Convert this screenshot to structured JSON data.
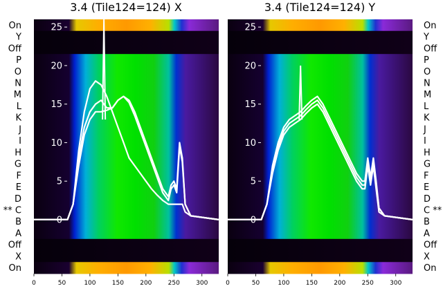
{
  "chart_data": [
    {
      "type": "heatmap",
      "title": "3.4 (Tile124=124) X",
      "row_labels_left": [
        "On",
        "Y",
        "Off",
        "P",
        "O",
        "N",
        "M",
        "L",
        "K",
        "J",
        "I",
        "H",
        "G",
        "F",
        "E",
        "D",
        "** C",
        "B",
        "A",
        "Off",
        "X",
        "On"
      ],
      "xlim": [
        0,
        330
      ],
      "ylim": [
        -7,
        26
      ],
      "x_ticks": [
        0,
        50,
        100,
        150,
        200,
        250,
        300
      ],
      "y_ticks": [
        0,
        5,
        10,
        15,
        20,
        25
      ],
      "overlay": {
        "type": "line",
        "color": "#ffffff",
        "x": [
          0,
          60,
          70,
          80,
          90,
          100,
          110,
          120,
          130,
          140,
          150,
          160,
          170,
          180,
          190,
          200,
          210,
          220,
          230,
          240,
          245,
          250,
          255,
          260,
          265,
          270,
          280,
          330
        ],
        "series": [
          {
            "values": [
              0,
              0,
              2,
              8,
              12,
              14,
              15,
              15.5,
              14.5,
              14.5,
              15.5,
              16,
              15.5,
              14,
              12,
              10,
              8,
              6,
              4,
              3,
              4.5,
              5,
              4,
              10,
              8,
              2,
              0.5,
              0
            ]
          },
          {
            "values": [
              0,
              0,
              2,
              7,
              11,
              13,
              14,
              14,
              14.2,
              14.5,
              15.5,
              16,
              15.2,
              13.5,
              11.5,
              9.5,
              7.5,
              5.5,
              3.5,
              2.5,
              4,
              4.5,
              3.5,
              9.5,
              7.5,
              2,
              0.5,
              0
            ]
          },
          {
            "values": [
              0,
              0,
              2,
              9,
              14,
              17,
              18,
              17.5,
              16,
              14,
              12,
              10,
              8,
              7,
              6,
              5,
              4,
              3.2,
              2.5,
              2,
              2,
              2,
              2,
              2,
              2,
              1,
              0.5,
              0
            ]
          }
        ],
        "spike_x": 125,
        "spike_peak": 26
      }
    },
    {
      "type": "heatmap",
      "title": "3.4 (Tile124=124) Y",
      "row_labels_right": [
        "On",
        "Y",
        "Off",
        "P",
        "O",
        "N",
        "M",
        "L",
        "K",
        "J",
        "I",
        "H",
        "G",
        "F",
        "E",
        "D",
        "C **",
        "B",
        "A",
        "Off",
        "X",
        "On"
      ],
      "xlim": [
        0,
        330
      ],
      "ylim": [
        -7,
        26
      ],
      "x_ticks": [
        0,
        50,
        100,
        150,
        200,
        250,
        300
      ],
      "y_ticks": [
        0,
        5,
        10,
        15,
        20,
        25
      ],
      "overlay": {
        "type": "line",
        "color": "#ffffff",
        "x": [
          0,
          60,
          70,
          80,
          90,
          100,
          110,
          120,
          130,
          140,
          150,
          160,
          170,
          180,
          190,
          200,
          210,
          220,
          230,
          240,
          245,
          250,
          255,
          260,
          265,
          270,
          280,
          330
        ],
        "series": [
          {
            "values": [
              0,
              0,
              2,
              7,
              10,
              12,
              13,
              13.5,
              14,
              14.8,
              15.5,
              16,
              15,
              13.5,
              12,
              10.5,
              9,
              7.5,
              6,
              5,
              5,
              8,
              5.5,
              8,
              5,
              1.5,
              0.5,
              0
            ]
          },
          {
            "values": [
              0,
              0,
              2,
              6.5,
              9.5,
              11.5,
              12.5,
              13,
              13.5,
              14.3,
              15,
              15.5,
              14.5,
              13,
              11.5,
              10,
              8.5,
              7,
              5.5,
              4.5,
              4.5,
              7.5,
              5,
              7.5,
              4.5,
              1.5,
              0.5,
              0
            ]
          },
          {
            "values": [
              0,
              0,
              2,
              6,
              9,
              11,
              12,
              12.5,
              13,
              13.8,
              14.5,
              15,
              14,
              12.5,
              11,
              9.5,
              8,
              6.5,
              5,
              4,
              4,
              7,
              4.5,
              7,
              4,
              1,
              0.5,
              0
            ]
          }
        ],
        "spike_x": 130,
        "spike_peak": 20
      }
    }
  ]
}
